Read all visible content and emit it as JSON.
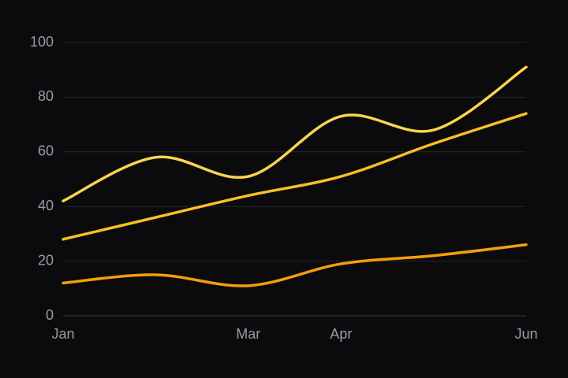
{
  "chart_data": {
    "type": "line",
    "categories": [
      "Jan",
      null,
      "Mar",
      "Apr",
      null,
      "Jun"
    ],
    "series": [
      {
        "color": "#fcd34d",
        "values": [
          42,
          58,
          51,
          73,
          68,
          91
        ]
      },
      {
        "color": "#fbbf24",
        "values": [
          28,
          36,
          44,
          51,
          63,
          74
        ]
      },
      {
        "color": "#f59e0b",
        "values": [
          12,
          15,
          11,
          19,
          22,
          26
        ]
      }
    ],
    "ylim": [
      0,
      100
    ],
    "yticks": [
      0,
      20,
      40,
      60,
      80,
      100
    ],
    "grid": true,
    "smooth": true
  }
}
